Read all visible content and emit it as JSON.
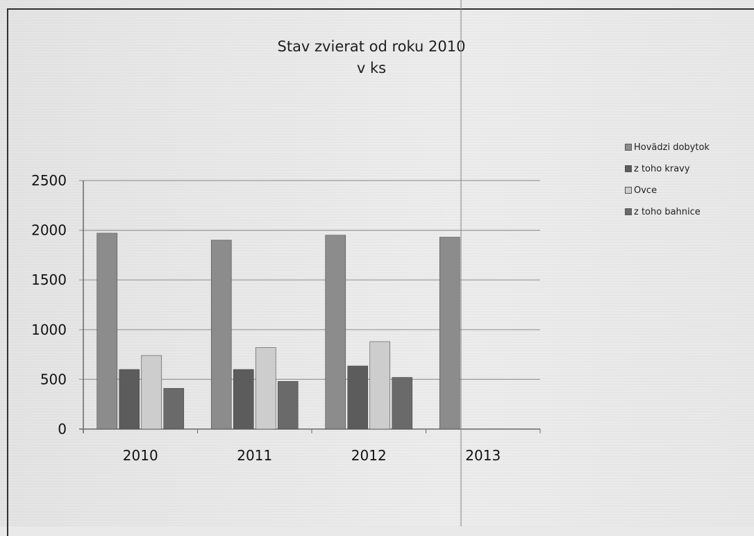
{
  "chart_data": {
    "type": "bar",
    "title": "Stav zvierat od roku 2010",
    "subtitle": "v ks",
    "categories": [
      "2010",
      "2011",
      "2012",
      "2013"
    ],
    "series": [
      {
        "name": "Hovädzi dobytok",
        "values": [
          1970,
          1900,
          1950,
          1930
        ],
        "color": "#8c8c8c"
      },
      {
        "name": "z toho  kravy",
        "values": [
          600,
          600,
          635,
          null
        ],
        "color": "#5c5c5c"
      },
      {
        "name": "Ovce",
        "values": [
          740,
          820,
          880,
          null
        ],
        "color": "#cdcdcd"
      },
      {
        "name": "z toho  bahnice",
        "values": [
          410,
          480,
          520,
          null
        ],
        "color": "#6a6a6a"
      }
    ],
    "y_ticks": [
      "0",
      "500",
      "1000",
      "1500",
      "2000",
      "2500"
    ],
    "ylim": [
      0,
      2500
    ],
    "grid": true,
    "legend": "right"
  }
}
